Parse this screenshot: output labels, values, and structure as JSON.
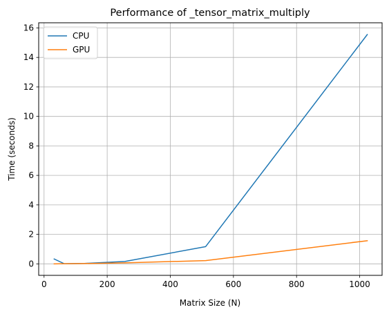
{
  "chart_data": {
    "type": "line",
    "title": "Performance of _tensor_matrix_multiply",
    "xlabel": "Matrix Size (N)",
    "ylabel": "Time (seconds)",
    "xlim": [
      -17,
      1071
    ],
    "ylim": [
      -0.78,
      16.35
    ],
    "x_ticks": [
      0,
      200,
      400,
      600,
      800,
      1000
    ],
    "y_ticks": [
      0,
      2,
      4,
      6,
      8,
      10,
      12,
      14,
      16
    ],
    "grid": true,
    "legend_position": "upper-left",
    "series": [
      {
        "name": "CPU",
        "color": "#1f77b4",
        "points": [
          [
            32,
            0.33
          ],
          [
            64,
            0.01
          ],
          [
            128,
            0.03
          ],
          [
            256,
            0.16
          ],
          [
            512,
            1.17
          ],
          [
            1024,
            15.55
          ]
        ]
      },
      {
        "name": "GPU",
        "color": "#ff7f0e",
        "points": [
          [
            32,
            0.0
          ],
          [
            64,
            0.01
          ],
          [
            128,
            0.02
          ],
          [
            256,
            0.07
          ],
          [
            512,
            0.22
          ],
          [
            1024,
            1.57
          ]
        ]
      }
    ]
  }
}
